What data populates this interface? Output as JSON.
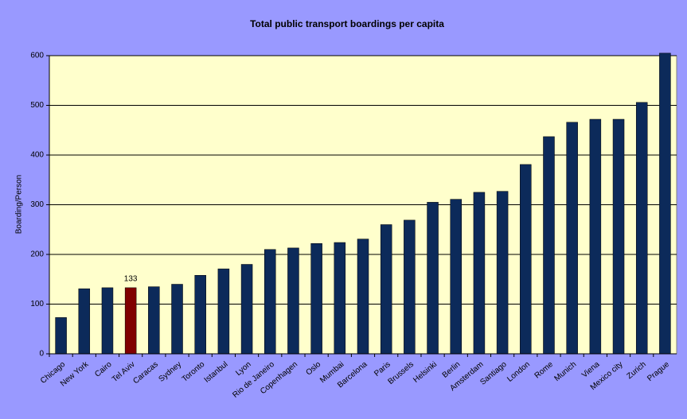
{
  "chart_data": {
    "type": "bar",
    "title": "Total public transport boardings per capita",
    "y_label": "Boarding/Person",
    "categories": [
      "Chicago",
      "New York",
      "Cairo",
      "Tel Aviv",
      "Caracas",
      "Sydney",
      "Toronto",
      "Istanbul",
      "Lyon",
      "Rio de Janeiro",
      "Copenhagen",
      "Oslo",
      "Mumbai",
      "Barcelona",
      "Paris",
      "Brussels",
      "Helsinki",
      "Berlin",
      "Amsterdam",
      "Santiago",
      "London",
      "Rome",
      "Munich",
      "Viena",
      "Mexico city",
      "Zurich",
      "Prague"
    ],
    "values": [
      73,
      131,
      133,
      133,
      135,
      140,
      158,
      171,
      180,
      210,
      213,
      222,
      224,
      231,
      260,
      269,
      305,
      311,
      325,
      327,
      381,
      437,
      466,
      472,
      472,
      506,
      605
    ],
    "colors": [
      "#0c2a5a",
      "#0c2a5a",
      "#0c2a5a",
      "#800000",
      "#0c2a5a",
      "#0c2a5a",
      "#0c2a5a",
      "#0c2a5a",
      "#0c2a5a",
      "#0c2a5a",
      "#0c2a5a",
      "#0c2a5a",
      "#0c2a5a",
      "#0c2a5a",
      "#0c2a5a",
      "#0c2a5a",
      "#0c2a5a",
      "#0c2a5a",
      "#0c2a5a",
      "#0c2a5a",
      "#0c2a5a",
      "#0c2a5a",
      "#0c2a5a",
      "#0c2a5a",
      "#0c2a5a",
      "#0c2a5a",
      "#0c2a5a"
    ],
    "data_labels": [
      false,
      false,
      false,
      true,
      false,
      false,
      false,
      false,
      false,
      false,
      false,
      false,
      false,
      false,
      false,
      false,
      false,
      false,
      false,
      false,
      false,
      false,
      false,
      false,
      false,
      false,
      false
    ],
    "ylim": [
      0,
      600
    ],
    "yticks": [
      0,
      100,
      200,
      300,
      400,
      500,
      600
    ],
    "grid": true
  }
}
